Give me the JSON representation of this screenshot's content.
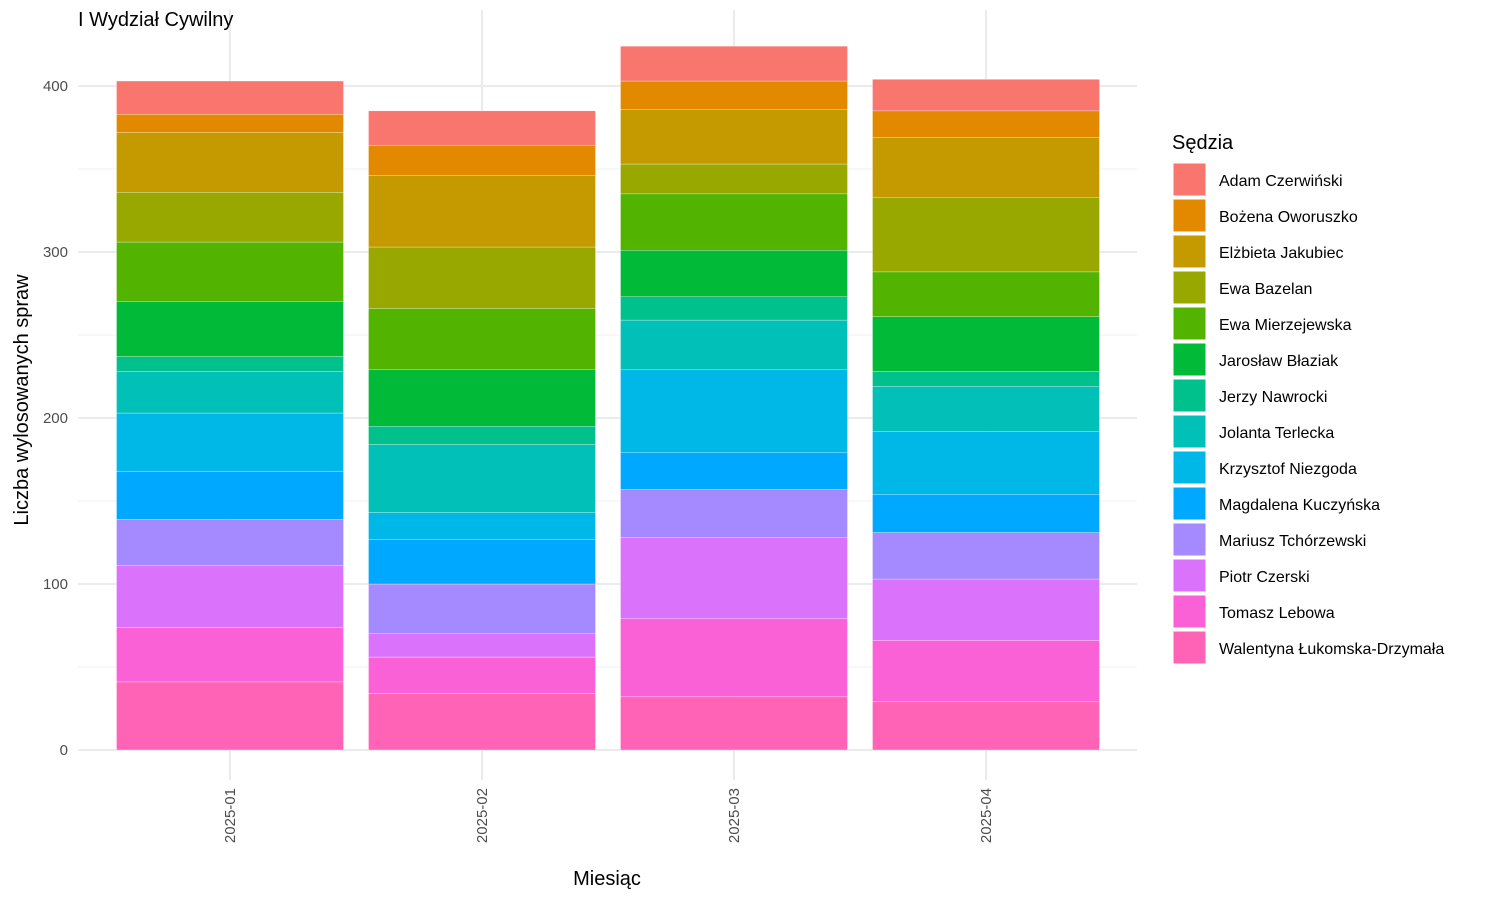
{
  "chart_data": {
    "type": "bar",
    "stacked": true,
    "title": "I Wydział Cywilny",
    "xlabel": "Miesiąc",
    "ylabel": "Liczba wylosowanych spraw",
    "ylim": [
      0,
      425
    ],
    "yticks": [
      0,
      100,
      200,
      300,
      400
    ],
    "grid": true,
    "legend_title": "Sędzia",
    "legend_position": "right",
    "categories": [
      "2025-01",
      "2025-02",
      "2025-03",
      "2025-04"
    ],
    "series": [
      {
        "name": "Walentyna Łukomska-Drzymała",
        "color": "#FF63B6",
        "values": [
          41,
          34,
          32,
          29
        ]
      },
      {
        "name": "Tomasz Lebowa",
        "color": "#FB61D7",
        "values": [
          33,
          22,
          47,
          37
        ]
      },
      {
        "name": "Piotr Czerski",
        "color": "#DB72FB",
        "values": [
          37,
          14,
          49,
          37
        ]
      },
      {
        "name": "Mariusz Tchórzewski",
        "color": "#A58AFF",
        "values": [
          28,
          30,
          29,
          28
        ]
      },
      {
        "name": "Magdalena Kuczyńska",
        "color": "#00A9FF",
        "values": [
          29,
          27,
          22,
          23
        ]
      },
      {
        "name": "Krzysztof Niezgoda",
        "color": "#00B8E7",
        "values": [
          35,
          16,
          50,
          38
        ]
      },
      {
        "name": "Jolanta Terlecka",
        "color": "#00C0B8",
        "values": [
          25,
          41,
          30,
          27
        ]
      },
      {
        "name": "Jerzy Nawrocki",
        "color": "#00C08B",
        "values": [
          9,
          11,
          14,
          9
        ]
      },
      {
        "name": "Jarosław Błaziak",
        "color": "#00BA38",
        "values": [
          33,
          34,
          28,
          33
        ]
      },
      {
        "name": "Ewa Mierzejewska",
        "color": "#53B400",
        "values": [
          36,
          37,
          34,
          27
        ]
      },
      {
        "name": "Ewa Bazelan",
        "color": "#99A800",
        "values": [
          30,
          37,
          18,
          45
        ]
      },
      {
        "name": "Elżbieta Jakubiec",
        "color": "#C49A00",
        "values": [
          36,
          43,
          33,
          36
        ]
      },
      {
        "name": "Bożena Oworuszko",
        "color": "#E38900",
        "values": [
          11,
          18,
          17,
          16
        ]
      },
      {
        "name": "Adam Czerwiński",
        "color": "#F8766D",
        "values": [
          20,
          21,
          21,
          19
        ]
      }
    ],
    "legend_order": [
      "Adam Czerwiński",
      "Bożena Oworuszko",
      "Elżbieta Jakubiec",
      "Ewa Bazelan",
      "Ewa Mierzejewska",
      "Jarosław Błaziak",
      "Jerzy Nawrocki",
      "Jolanta Terlecka",
      "Krzysztof Niezgoda",
      "Magdalena Kuczyńska",
      "Mariusz Tchórzewski",
      "Piotr Czerski",
      "Tomasz Lebowa",
      "Walentyna Łukomska-Drzymała"
    ]
  }
}
